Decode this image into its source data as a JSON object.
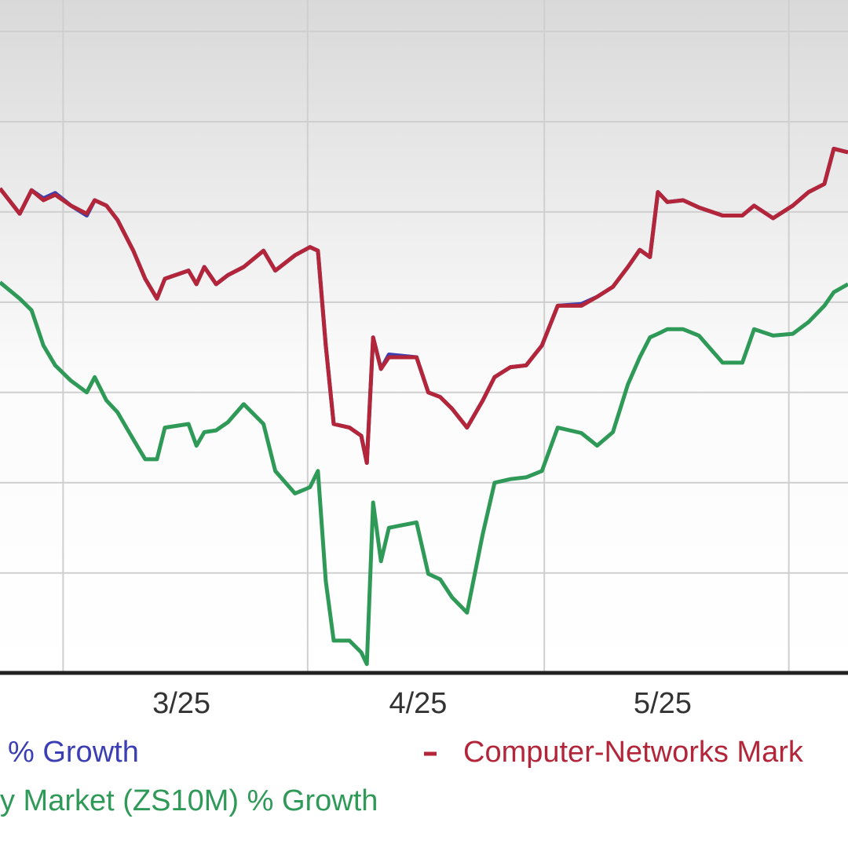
{
  "chart_data": {
    "type": "line",
    "x": [
      -8.0,
      -5.5,
      -4.0,
      -2.5,
      -1.0,
      1.0,
      3.0,
      4.0,
      5.5,
      6.9,
      8.9,
      10.4,
      11.9,
      12.9,
      15.9,
      16.9,
      17.9,
      19.4,
      20.9,
      22.9,
      25.4,
      26.9,
      29.4,
      31.3,
      32.3,
      33.3,
      34.3,
      36.3,
      37.8,
      38.5,
      39.3,
      40.3,
      41.3,
      44.8,
      46.3,
      47.8,
      49.3,
      51.2,
      53.2,
      54.7,
      56.7,
      58.7,
      60.7,
      62.7,
      65.7,
      67.7,
      69.7,
      71.6,
      73.1,
      74.4,
      75.4,
      76.6,
      78.6,
      80.6,
      83.6,
      86.1,
      87.6,
      90.0,
      92.5,
      94.5,
      96.5,
      97.7,
      99.5
    ],
    "series": [
      {
        "name": "% Growth",
        "color": "#3b3fb3",
        "values": [
          12.6,
          9.8,
          12.4,
          11.5,
          12.1,
          10.7,
          9.6,
          11.3,
          10.7,
          9.1,
          5.7,
          2.6,
          0.4,
          2.6,
          3.5,
          2.0,
          3.9,
          2.0,
          3.0,
          3.9,
          5.7,
          3.5,
          5.2,
          6.1,
          5.7,
          -4.8,
          -13.5,
          -13.9,
          -14.8,
          -17.8,
          -3.9,
          -7.4,
          -5.8,
          -6.1,
          -10.0,
          -10.5,
          -11.8,
          -13.9,
          -10.9,
          -8.3,
          -7.2,
          -7.0,
          -4.8,
          -0.4,
          -0.2,
          0.6,
          1.7,
          3.9,
          5.8,
          5.0,
          12.2,
          11.1,
          11.3,
          10.5,
          9.6,
          9.6,
          10.7,
          9.3,
          10.7,
          12.2,
          13.1,
          17.0,
          16.6
        ]
      },
      {
        "name": "Computer-Networks Mark",
        "color": "#b3263a",
        "values": [
          12.6,
          9.8,
          12.4,
          11.3,
          11.9,
          10.7,
          9.8,
          11.3,
          10.7,
          9.1,
          5.7,
          2.6,
          0.4,
          2.6,
          3.5,
          2.0,
          3.9,
          2.0,
          3.0,
          3.9,
          5.7,
          3.5,
          5.2,
          6.1,
          5.7,
          -4.8,
          -13.5,
          -13.9,
          -14.8,
          -17.8,
          -3.9,
          -7.4,
          -6.1,
          -6.1,
          -10.0,
          -10.5,
          -11.8,
          -13.9,
          -10.9,
          -8.3,
          -7.2,
          -7.0,
          -4.8,
          -0.4,
          -0.4,
          0.6,
          1.7,
          3.9,
          5.8,
          5.0,
          12.2,
          11.1,
          11.3,
          10.5,
          9.6,
          9.6,
          10.7,
          9.3,
          10.7,
          12.2,
          13.1,
          17.0,
          16.6
        ]
      },
      {
        "name": "y Market (ZS10M) % Growth",
        "color": "#2f9a58",
        "values": [
          2.2,
          0.4,
          -0.9,
          -4.8,
          -7.0,
          -8.7,
          -10.0,
          -8.3,
          -10.9,
          -12.2,
          -15.2,
          -17.4,
          -17.4,
          -13.9,
          -13.5,
          -15.9,
          -14.4,
          -14.2,
          -13.3,
          -11.3,
          -13.5,
          -18.7,
          -21.2,
          -20.5,
          -18.7,
          -30.9,
          -37.5,
          -37.5,
          -38.8,
          -40.1,
          -22.2,
          -28.7,
          -25.0,
          -24.4,
          -30.1,
          -30.7,
          -32.7,
          -34.4,
          -25.7,
          -20.0,
          -19.6,
          -19.4,
          -18.7,
          -13.9,
          -14.5,
          -15.9,
          -14.4,
          -9.1,
          -6.1,
          -3.9,
          -3.5,
          -3.0,
          -3.0,
          -3.7,
          -6.7,
          -6.7,
          -3.0,
          -3.7,
          -3.5,
          -2.2,
          -0.4,
          1.1,
          2.0
        ]
      }
    ],
    "xlim": [
      -8,
      99.5
    ],
    "xticks": [
      {
        "value": 15,
        "label": "3/25"
      },
      {
        "value": 45,
        "label": "4/25"
      },
      {
        "value": 76,
        "label": "5/25"
      }
    ],
    "xgridlines": [
      0,
      31,
      61,
      92
    ],
    "ylim": [
      -40.9,
      30
    ],
    "yticks": [
      -30,
      -20,
      -10,
      0,
      10,
      20,
      30
    ],
    "grid": true
  }
}
